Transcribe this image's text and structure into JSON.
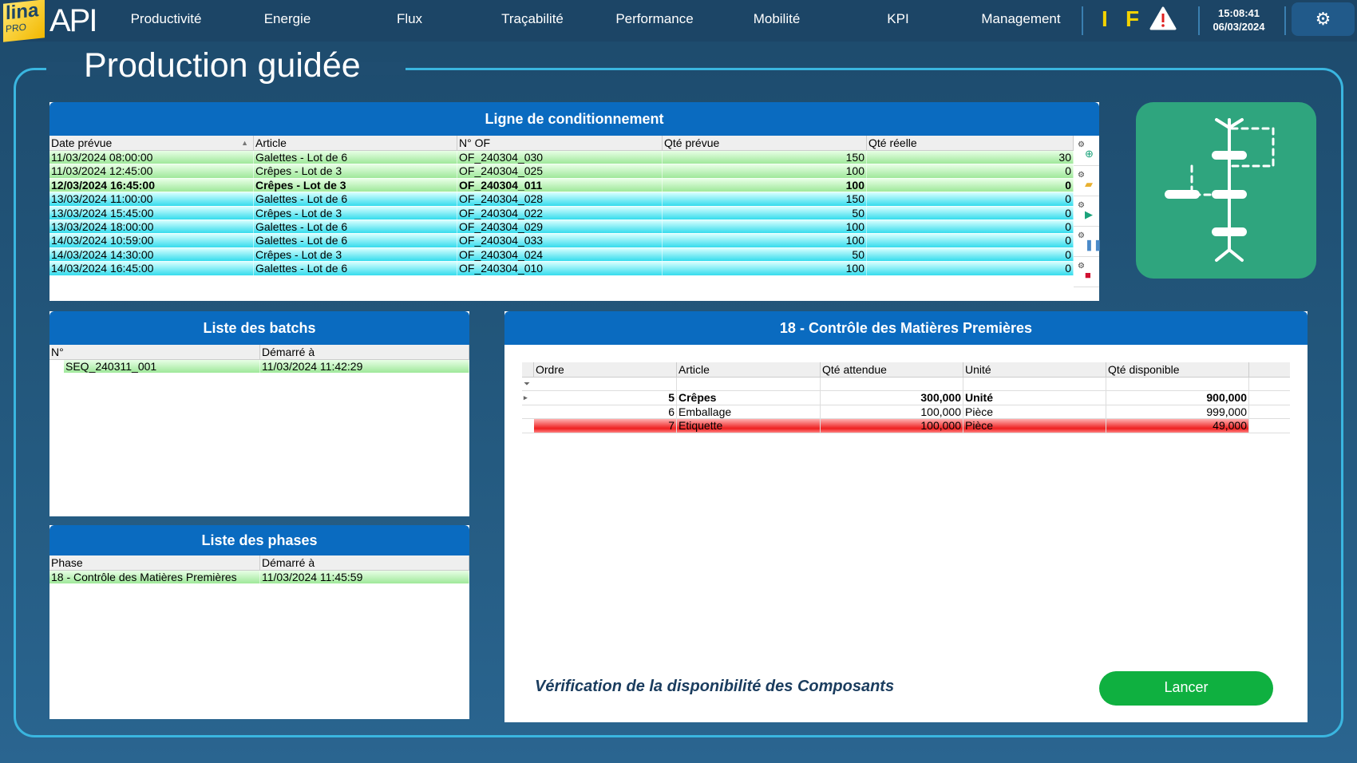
{
  "nav": {
    "logo_lina": "lina",
    "logo_pro": "PRO",
    "logo_api": "API",
    "items": [
      "Productivité",
      "Energie",
      "Flux",
      "Traçabilité",
      "Performance",
      "Mobilité",
      "KPI",
      "Management"
    ],
    "indicator_i": "I",
    "indicator_f": "F",
    "time": "15:08:41",
    "date": "06/03/2024"
  },
  "page_title": "Production guidée",
  "ligne": {
    "title": "Ligne de conditionnement",
    "columns": [
      "Date prévue",
      "Article",
      "N° OF",
      "Qté prévue",
      "Qté réelle"
    ],
    "rows": [
      [
        "11/03/2024 08:00:00",
        "Galettes - Lot de 6",
        "OF_240304_030",
        "150",
        "30"
      ],
      [
        "11/03/2024 12:45:00",
        "Crêpes - Lot de 3",
        "OF_240304_025",
        "100",
        "0"
      ],
      [
        "12/03/2024 16:45:00",
        "Crêpes - Lot de 3",
        "OF_240304_011",
        "100",
        "0"
      ],
      [
        "13/03/2024 11:00:00",
        "Galettes - Lot de 6",
        "OF_240304_028",
        "150",
        "0"
      ],
      [
        "13/03/2024 15:45:00",
        "Crêpes - Lot de 3",
        "OF_240304_022",
        "50",
        "0"
      ],
      [
        "13/03/2024 18:00:00",
        "Galettes - Lot de 6",
        "OF_240304_029",
        "100",
        "0"
      ],
      [
        "14/03/2024 10:59:00",
        "Galettes - Lot de 6",
        "OF_240304_033",
        "100",
        "0"
      ],
      [
        "14/03/2024 14:30:00",
        "Crêpes - Lot de 3",
        "OF_240304_024",
        "50",
        "0"
      ],
      [
        "14/03/2024 16:45:00",
        "Galettes - Lot de 6",
        "OF_240304_010",
        "100",
        "0"
      ]
    ]
  },
  "batchs": {
    "title": "Liste des batchs",
    "columns": [
      "N°",
      "Démarré à"
    ],
    "rows": [
      [
        "SEQ_240311_001",
        "11/03/2024 11:42:29"
      ]
    ]
  },
  "phases": {
    "title": "Liste des phases",
    "columns": [
      "Phase",
      "Démarré à"
    ],
    "rows": [
      [
        "18 - Contrôle des Matières Premières",
        "11/03/2024 11:45:59"
      ]
    ]
  },
  "controle": {
    "title": "18 - Contrôle des Matières Premières",
    "columns": [
      "Ordre",
      "Article",
      "Qté attendue",
      "Unité",
      "Qté disponible"
    ],
    "rows": [
      [
        "5",
        "Crêpes",
        "300,000",
        "Unité",
        "900,000"
      ],
      [
        "6",
        "Emballage",
        "100,000",
        "Pièce",
        "999,000"
      ],
      [
        "7",
        "Etiquette",
        "100,000",
        "Pièce",
        "49,000"
      ]
    ],
    "message": "Vérification de la disponibilité des Composants",
    "launch_label": "Lancer"
  },
  "colors": {
    "accent": "#0a6bc0",
    "launch": "#0fb040",
    "workflow_tile": "#2fa57e",
    "alert_row": "#ee2020"
  }
}
